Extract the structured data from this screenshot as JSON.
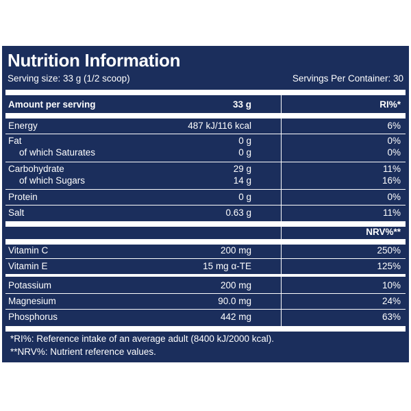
{
  "title": "Nutrition Information",
  "serving_size": "Serving size: 33 g (1/2 scoop)",
  "servings_per_container": "Servings Per Container: 30",
  "header": {
    "label": "Amount per serving",
    "amount": "33 g",
    "ri": "RI%*"
  },
  "rows": [
    {
      "name": "Energy",
      "amount": "487 kJ/116 kcal",
      "pct": "6%"
    },
    {
      "name": "Fat",
      "amount": "0 g",
      "pct": "0%"
    },
    {
      "name": "of which Saturates",
      "amount": "0 g",
      "pct": "0%"
    },
    {
      "name": "Carbohydrate",
      "amount": "29 g",
      "pct": "11%"
    },
    {
      "name": "of which Sugars",
      "amount": "14 g",
      "pct": "16%"
    },
    {
      "name": "Protein",
      "amount": "0 g",
      "pct": "0%"
    },
    {
      "name": "Salt",
      "amount": "0.63 g",
      "pct": "11%"
    }
  ],
  "nrv_header": "NRV%**",
  "nrv_rows": [
    {
      "name": "Vitamin C",
      "amount": "200 mg",
      "pct": "250%"
    },
    {
      "name": "Vitamin E",
      "amount": "15 mg α-TE",
      "pct": "125%"
    },
    {
      "name": "Potassium",
      "amount": "200 mg",
      "pct": "10%"
    },
    {
      "name": "Magnesium",
      "amount": "90.0 mg",
      "pct": "24%"
    },
    {
      "name": "Phosphorus",
      "amount": "442 mg",
      "pct": "63%"
    }
  ],
  "footnotes": [
    "*RI%: Reference intake of an average adult (8400 kJ/2000 kcal).",
    "**NRV%: Nutrient reference values."
  ],
  "colors": {
    "background": "#1b2e5c",
    "text": "#ffffff"
  }
}
